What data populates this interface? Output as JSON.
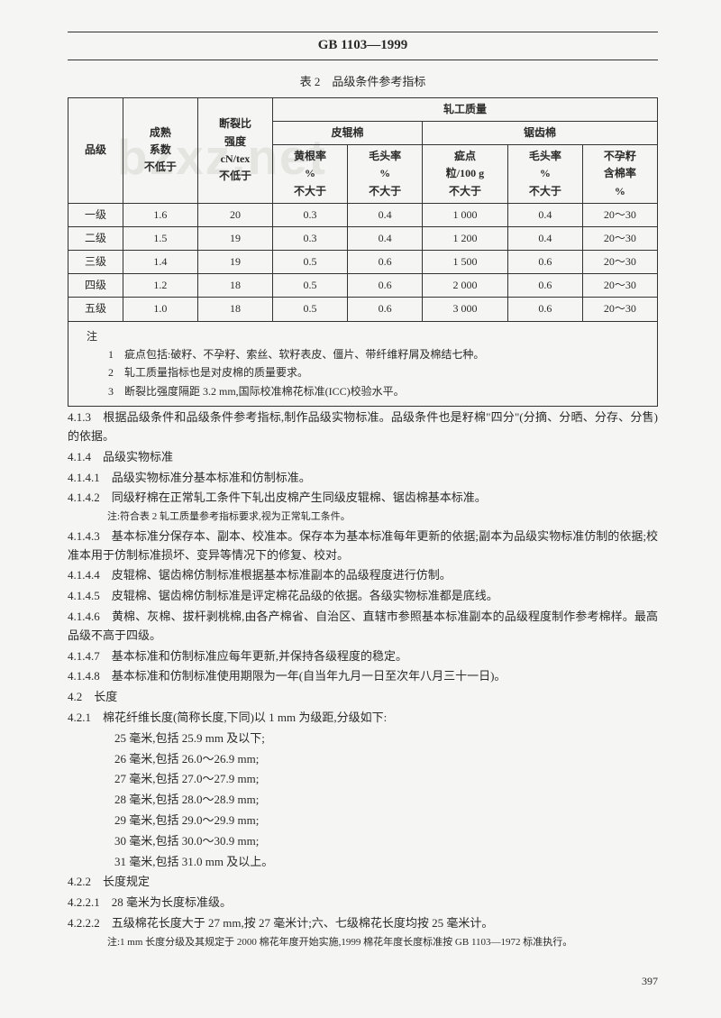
{
  "header": "GB 1103—1999",
  "watermark": "bzxz.net",
  "table": {
    "title": "表 2　品级条件参考指标",
    "col_headers": {
      "grade": "品级",
      "maturity": "成熟\n系数\n不低于",
      "strength": "断裂比\n强度\ncN/tex\n不低于",
      "quality": "轧工质量",
      "roller": "皮辊棉",
      "saw": "锯齿棉",
      "yellow": "黄根率\n%\n不大于",
      "hair1": "毛头率\n%\n不大于",
      "nep": "疵点\n粒/100 g\n不大于",
      "hair2": "毛头率\n%\n不大于",
      "seed": "不孕籽\n含棉率\n%"
    },
    "rows": [
      {
        "grade": "一级",
        "maturity": "1.6",
        "strength": "20",
        "yellow": "0.3",
        "hair1": "0.4",
        "nep": "1 000",
        "hair2": "0.4",
        "seed": "20～30"
      },
      {
        "grade": "二级",
        "maturity": "1.5",
        "strength": "19",
        "yellow": "0.3",
        "hair1": "0.4",
        "nep": "1 200",
        "hair2": "0.4",
        "seed": "20～30"
      },
      {
        "grade": "三级",
        "maturity": "1.4",
        "strength": "19",
        "yellow": "0.5",
        "hair1": "0.6",
        "nep": "1 500",
        "hair2": "0.6",
        "seed": "20～30"
      },
      {
        "grade": "四级",
        "maturity": "1.2",
        "strength": "18",
        "yellow": "0.5",
        "hair1": "0.6",
        "nep": "2 000",
        "hair2": "0.6",
        "seed": "20～30"
      },
      {
        "grade": "五级",
        "maturity": "1.0",
        "strength": "18",
        "yellow": "0.5",
        "hair1": "0.6",
        "nep": "3 000",
        "hair2": "0.6",
        "seed": "20～30"
      }
    ],
    "notes_label": "注",
    "notes": [
      "1　疵点包括:破籽、不孕籽、索丝、软籽表皮、僵片、带纤维籽屑及棉结七种。",
      "2　轧工质量指标也是对皮棉的质量要求。",
      "3　断裂比强度隔距 3.2 mm,国际校准棉花标准(ICC)校验水平。"
    ]
  },
  "body": [
    {
      "t": "p",
      "c": "4.1.3　根据品级条件和品级条件参考指标,制作品级实物标准。品级条件也是籽棉\"四分\"(分摘、分晒、分存、分售)的依据。"
    },
    {
      "t": "p",
      "c": "4.1.4　品级实物标准"
    },
    {
      "t": "p",
      "c": "4.1.4.1　品级实物标准分基本标准和仿制标准。"
    },
    {
      "t": "p",
      "c": "4.1.4.2　同级籽棉在正常轧工条件下轧出皮棉产生同级皮辊棉、锯齿棉基本标准。"
    },
    {
      "t": "pn",
      "c": "注:符合表 2 轧工质量参考指标要求,视为正常轧工条件。"
    },
    {
      "t": "p",
      "c": "4.1.4.3　基本标准分保存本、副本、校准本。保存本为基本标准每年更新的依据;副本为品级实物标准仿制的依据;校准本用于仿制标准损坏、变异等情况下的修复、校对。"
    },
    {
      "t": "p",
      "c": "4.1.4.4　皮辊棉、锯齿棉仿制标准根据基本标准副本的品级程度进行仿制。"
    },
    {
      "t": "p",
      "c": "4.1.4.5　皮辊棉、锯齿棉仿制标准是评定棉花品级的依据。各级实物标准都是底线。"
    },
    {
      "t": "p",
      "c": "4.1.4.6　黄棉、灰棉、拔杆剥桃棉,由各产棉省、自治区、直辖市参照基本标准副本的品级程度制作参考棉样。最高品级不高于四级。"
    },
    {
      "t": "p",
      "c": "4.1.4.7　基本标准和仿制标准应每年更新,并保持各级程度的稳定。"
    },
    {
      "t": "p",
      "c": "4.1.4.8　基本标准和仿制标准使用期限为一年(自当年九月一日至次年八月三十一日)。"
    },
    {
      "t": "p",
      "c": "4.2　长度"
    },
    {
      "t": "p",
      "c": "4.2.1　棉花纤维长度(简称长度,下同)以 1 mm 为级距,分级如下:"
    },
    {
      "t": "li",
      "c": "25 毫米,包括 25.9 mm 及以下;"
    },
    {
      "t": "li",
      "c": "26 毫米,包括 26.0～26.9 mm;"
    },
    {
      "t": "li",
      "c": "27 毫米,包括 27.0～27.9 mm;"
    },
    {
      "t": "li",
      "c": "28 毫米,包括 28.0～28.9 mm;"
    },
    {
      "t": "li",
      "c": "29 毫米,包括 29.0～29.9 mm;"
    },
    {
      "t": "li",
      "c": "30 毫米,包括 30.0～30.9 mm;"
    },
    {
      "t": "li",
      "c": "31 毫米,包括 31.0 mm 及以上。"
    },
    {
      "t": "p",
      "c": "4.2.2　长度规定"
    },
    {
      "t": "p",
      "c": "4.2.2.1　28 毫米为长度标准级。"
    },
    {
      "t": "p",
      "c": "4.2.2.2　五级棉花长度大于 27 mm,按 27 毫米计;六、七级棉花长度均按 25 毫米计。"
    },
    {
      "t": "pn",
      "c": "注:1 mm 长度分级及其规定于 2000 棉花年度开始实施,1999 棉花年度长度标准按 GB 1103—1972 标准执行。"
    }
  ],
  "pagenum": "397"
}
